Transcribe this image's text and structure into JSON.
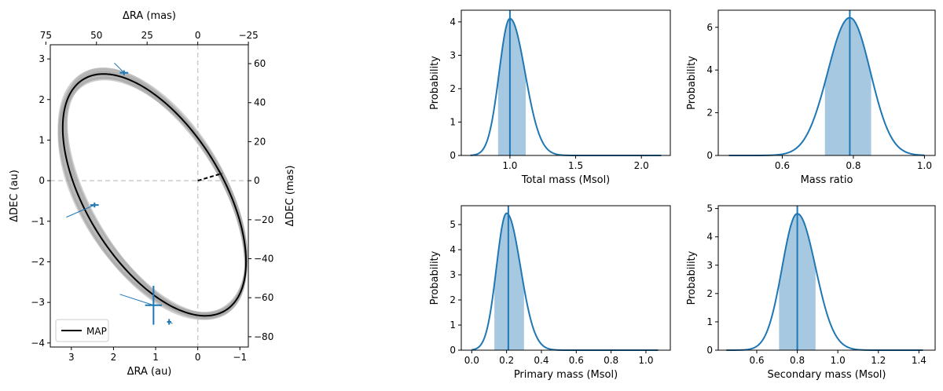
{
  "colors": {
    "accent": "#1f77b4",
    "fill": "#a6c8e0",
    "orbit_gray": "#a9a9a9",
    "map_line": "#000000",
    "axis_gray": "#cccccc"
  },
  "chart_data": [
    {
      "type": "scatter",
      "title": "",
      "xlabel": "ΔRA (au)",
      "ylabel": "ΔDEC (au)",
      "xlim": [
        3.5,
        -1.2
      ],
      "ylim": [
        -4.1,
        3.35
      ],
      "xticks": [
        3,
        2,
        1,
        0,
        -1
      ],
      "yticks": [
        3,
        2,
        1,
        0,
        -1,
        -2,
        -3,
        -4
      ],
      "top_xlabel": "ΔRA (mas)",
      "top_xticks": [
        75,
        50,
        25,
        0,
        -25
      ],
      "right_ylabel": "ΔDEC (mas)",
      "right_yticks": [
        60,
        40,
        20,
        0,
        -20,
        -40,
        -60,
        -80
      ],
      "mas_per_au": 20.8,
      "legend": {
        "label": "MAP",
        "placement": "lower-left"
      },
      "map_orbit": {
        "center": [
          1.03,
          -0.35
        ],
        "a": 3.31,
        "b": 1.63,
        "tilt_deg": 60.0
      },
      "sample_orbits": {
        "count": 14,
        "a_spread": 0.09,
        "b_spread": 0.09,
        "tilt_spread_deg": 1.2
      },
      "periastron_point": [
        -0.58,
        0.18
      ],
      "observations": [
        {
          "x": 1.75,
          "y": 2.66,
          "xerr": 0.1,
          "yerr": 0.06,
          "model": [
            1.98,
            2.9
          ]
        },
        {
          "x": 2.45,
          "y": -0.6,
          "xerr": 0.1,
          "yerr": 0.06,
          "model": [
            3.12,
            -0.9
          ]
        },
        {
          "x": 1.05,
          "y": -3.07,
          "xerr": 0.2,
          "yerr": 0.48,
          "model": [
            1.85,
            -2.8
          ]
        },
        {
          "x": 0.68,
          "y": -3.48,
          "xerr": 0.05,
          "yerr": 0.07,
          "model": [
            0.6,
            -3.52
          ]
        }
      ]
    },
    {
      "type": "area",
      "xlabel": "Total mass (Msol)",
      "ylabel": "Probability",
      "xlim": [
        0.63,
        2.22
      ],
      "ylim": [
        0,
        4.35
      ],
      "xticks": [
        1.0,
        1.5,
        2.0
      ],
      "xtick_labels": [
        "1.0",
        "1.5",
        "2.0"
      ],
      "yticks": [
        0,
        1,
        2,
        3,
        4
      ],
      "ytick_labels": [
        "0",
        "1",
        "2",
        "3",
        "4"
      ],
      "median": 1.0,
      "shade": [
        0.91,
        1.12
      ],
      "density": {
        "peak": 4.1,
        "mode": 1.0,
        "sigma_left": 0.082,
        "sigma_right": 0.115,
        "x_range": [
          0.7,
          2.15
        ]
      }
    },
    {
      "type": "area",
      "xlabel": "Mass ratio",
      "ylabel": "Probability",
      "xlim": [
        0.42,
        1.03
      ],
      "ylim": [
        0,
        6.8
      ],
      "xticks": [
        0.6,
        0.8,
        1.0
      ],
      "xtick_labels": [
        "0.6",
        "0.8",
        "1.0"
      ],
      "yticks": [
        0,
        2,
        4,
        6
      ],
      "ytick_labels": [
        "0",
        "2",
        "4",
        "6"
      ],
      "median": 0.79,
      "shade": [
        0.72,
        0.85
      ],
      "density": {
        "peak": 6.45,
        "mode": 0.79,
        "sigma_left": 0.062,
        "sigma_right": 0.058,
        "x_range": [
          0.45,
          1.0
        ]
      }
    },
    {
      "type": "area",
      "xlabel": "Primary mass (Msol)",
      "ylabel": "Probability",
      "xlim": [
        -0.06,
        1.14
      ],
      "ylim": [
        0,
        5.75
      ],
      "xticks": [
        0.0,
        0.2,
        0.4,
        0.6,
        0.8,
        1.0
      ],
      "xtick_labels": [
        "0.0",
        "0.2",
        "0.4",
        "0.6",
        "0.8",
        "1.0"
      ],
      "yticks": [
        0,
        1,
        2,
        3,
        4,
        5
      ],
      "ytick_labels": [
        "0",
        "1",
        "2",
        "3",
        "4",
        "5"
      ],
      "median": 0.21,
      "shade": [
        0.13,
        0.3
      ],
      "density": {
        "peak": 5.45,
        "mode": 0.2,
        "sigma_left": 0.058,
        "sigma_right": 0.08,
        "x_range": [
          0.0,
          1.07
        ]
      }
    },
    {
      "type": "area",
      "xlabel": "Secondary mass (Msol)",
      "ylabel": "Probability",
      "xlim": [
        0.41,
        1.48
      ],
      "ylim": [
        0,
        5.1
      ],
      "xticks": [
        0.6,
        0.8,
        1.0,
        1.2,
        1.4
      ],
      "xtick_labels": [
        "0.6",
        "0.8",
        "1.0",
        "1.2",
        "1.4"
      ],
      "yticks": [
        0,
        1,
        2,
        3,
        4,
        5
      ],
      "ytick_labels": [
        "0",
        "1",
        "2",
        "3",
        "4",
        "5"
      ],
      "median": 0.8,
      "shade": [
        0.71,
        0.89
      ],
      "density": {
        "peak": 4.82,
        "mode": 0.8,
        "sigma_left": 0.075,
        "sigma_right": 0.09,
        "x_range": [
          0.45,
          1.42
        ]
      }
    }
  ]
}
